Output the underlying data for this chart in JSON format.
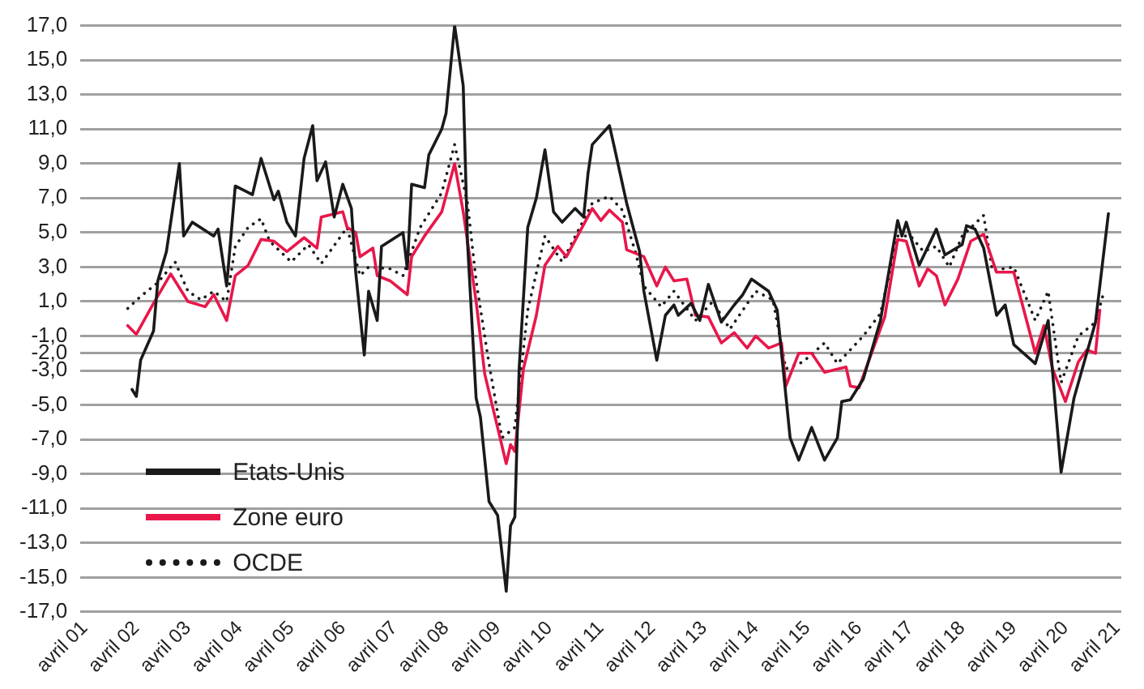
{
  "chart_data": {
    "type": "line",
    "legend": "bottom left",
    "grid": "y",
    "marker": "none",
    "xlim": [
      "2001-03",
      "2021-05"
    ],
    "xticks": [
      {
        "value": "2001-04",
        "label": "avril 01"
      },
      {
        "value": "2002-04",
        "label": "avril 02"
      },
      {
        "value": "2003-04",
        "label": "avril 03"
      },
      {
        "value": "2004-04",
        "label": "avril 04"
      },
      {
        "value": "2005-04",
        "label": "avril 05"
      },
      {
        "value": "2006-04",
        "label": "avril 06"
      },
      {
        "value": "2007-04",
        "label": "avril 07"
      },
      {
        "value": "2008-04",
        "label": "avril 08"
      },
      {
        "value": "2009-04",
        "label": "avril 09"
      },
      {
        "value": "2010-04",
        "label": "avril 10"
      },
      {
        "value": "2011-04",
        "label": "avril 11"
      },
      {
        "value": "2012-04",
        "label": "avril 12"
      },
      {
        "value": "2013-04",
        "label": "avril 13"
      },
      {
        "value": "2014-04",
        "label": "avril 14"
      },
      {
        "value": "2015-04",
        "label": "avril 15"
      },
      {
        "value": "2016-04",
        "label": "avril 16"
      },
      {
        "value": "2017-04",
        "label": "avril 17"
      },
      {
        "value": "2018-04",
        "label": "avril 18"
      },
      {
        "value": "2019-04",
        "label": "avril 19"
      },
      {
        "value": "2020-04",
        "label": "avril 20"
      },
      {
        "value": "2021-04",
        "label": "avril 21"
      }
    ],
    "ylim": [
      -17,
      17
    ],
    "yticks": [
      {
        "value": 17,
        "label": "17,0"
      },
      {
        "value": 15,
        "label": "15,0"
      },
      {
        "value": 13,
        "label": "13,0"
      },
      {
        "value": 11,
        "label": "11,0"
      },
      {
        "value": 9,
        "label": "9,0"
      },
      {
        "value": 7,
        "label": "7,0"
      },
      {
        "value": 5,
        "label": "5,0"
      },
      {
        "value": 3,
        "label": "3,0"
      },
      {
        "value": 1,
        "label": "1,0"
      },
      {
        "value": -1,
        "label": "-1,0"
      },
      {
        "value": -2,
        "label": "-2,0"
      },
      {
        "value": -3,
        "label": "-3,0"
      },
      {
        "value": -5,
        "label": "-5,0"
      },
      {
        "value": -7,
        "label": "-7,0"
      },
      {
        "value": -9,
        "label": "-9,0"
      },
      {
        "value": -11,
        "label": "-11,0"
      },
      {
        "value": -13,
        "label": "-13,0"
      },
      {
        "value": -15,
        "label": "-15,0"
      },
      {
        "value": -17,
        "label": "-17,0"
      }
    ],
    "series": [
      {
        "name": "Etats-Unis",
        "color": "#1a1a1a",
        "line_style": "solid",
        "x": [
          "2002-03",
          "2002-04",
          "2002-05",
          "2002-08",
          "2002-09",
          "2002-11",
          "2003-02",
          "2003-03",
          "2003-05",
          "2003-10",
          "2003-11",
          "2004-01",
          "2004-03",
          "2004-07",
          "2004-09",
          "2004-12",
          "2005-01",
          "2005-03",
          "2005-05",
          "2005-07",
          "2005-09",
          "2005-10",
          "2005-12",
          "2006-02",
          "2006-04",
          "2006-06",
          "2006-07",
          "2006-09",
          "2006-10",
          "2006-12",
          "2007-01",
          "2007-06",
          "2007-07",
          "2007-08",
          "2007-11",
          "2007-12",
          "2008-03",
          "2008-04",
          "2008-06",
          "2008-08",
          "2008-09",
          "2008-11",
          "2008-12",
          "2009-02",
          "2009-04",
          "2009-06",
          "2009-07",
          "2009-08",
          "2009-09",
          "2009-11",
          "2010-01",
          "2010-03",
          "2010-05",
          "2010-07",
          "2010-10",
          "2010-12",
          "2011-01",
          "2011-02",
          "2011-06",
          "2011-07",
          "2011-10",
          "2012-01",
          "2012-02",
          "2012-05",
          "2012-07",
          "2012-09",
          "2012-10",
          "2013-01",
          "2013-03",
          "2013-05",
          "2013-08",
          "2013-11",
          "2014-01",
          "2014-03",
          "2014-07",
          "2014-09",
          "2014-12",
          "2015-02",
          "2015-05",
          "2015-08",
          "2015-11",
          "2015-12",
          "2016-02",
          "2016-05",
          "2016-09",
          "2017-01",
          "2017-02",
          "2017-03",
          "2017-06",
          "2017-10",
          "2017-12",
          "2018-04",
          "2018-05",
          "2018-07",
          "2018-09",
          "2018-12",
          "2019-02",
          "2019-04",
          "2019-09",
          "2019-12",
          "2020-03",
          "2020-06",
          "2020-11",
          "2021-02"
        ],
        "values": [
          -4.1,
          -4.5,
          -2.4,
          -0.7,
          2.2,
          3.9,
          9.0,
          4.8,
          5.6,
          4.8,
          5.2,
          1.9,
          7.7,
          7.2,
          9.3,
          6.9,
          7.4,
          5.6,
          4.8,
          9.3,
          11.2,
          8.0,
          9.1,
          5.9,
          7.8,
          6.4,
          2.7,
          -2.1,
          1.6,
          -0.1,
          4.2,
          5.0,
          2.9,
          7.8,
          7.6,
          9.5,
          11.0,
          11.9,
          17.0,
          13.5,
          4.4,
          -4.6,
          -5.7,
          -10.6,
          -11.4,
          -15.8,
          -12.0,
          -11.5,
          -2.9,
          5.3,
          7.0,
          9.8,
          6.2,
          5.6,
          6.4,
          5.9,
          8.4,
          10.1,
          11.2,
          10.1,
          6.7,
          3.9,
          1.6,
          -2.4,
          0.2,
          0.8,
          0.2,
          0.9,
          -0.1,
          2.0,
          -0.2,
          0.8,
          1.4,
          2.3,
          1.6,
          0.5,
          -6.9,
          -8.2,
          -6.3,
          -8.2,
          -6.9,
          -4.8,
          -4.7,
          -3.5,
          -0.1,
          5.7,
          4.8,
          5.6,
          3.1,
          5.2,
          3.7,
          4.3,
          5.4,
          5.2,
          4.1,
          0.2,
          0.8,
          -1.5,
          -2.6,
          -0.1,
          -8.9,
          -4.6,
          -0.2,
          6.1
        ]
      },
      {
        "name": "Zone euro",
        "color": "#e8174a",
        "line_style": "solid",
        "x": [
          "2002-02",
          "2002-04",
          "2002-08",
          "2002-12",
          "2003-04",
          "2003-08",
          "2003-10",
          "2004-01",
          "2004-03",
          "2004-06",
          "2004-09",
          "2004-12",
          "2005-03",
          "2005-07",
          "2005-10",
          "2005-11",
          "2006-04",
          "2006-05",
          "2006-07",
          "2006-08",
          "2006-11",
          "2006-12",
          "2007-03",
          "2007-07",
          "2007-08",
          "2007-11",
          "2008-03",
          "2008-06",
          "2008-08",
          "2008-11",
          "2009-01",
          "2009-06",
          "2009-07",
          "2009-08",
          "2009-10",
          "2010-01",
          "2010-03",
          "2010-06",
          "2010-08",
          "2011-02",
          "2011-04",
          "2011-06",
          "2011-09",
          "2011-10",
          "2012-02",
          "2012-05",
          "2012-07",
          "2012-09",
          "2012-12",
          "2013-02",
          "2013-05",
          "2013-08",
          "2013-11",
          "2014-02",
          "2014-04",
          "2014-07",
          "2014-10",
          "2014-11",
          "2015-02",
          "2015-05",
          "2015-08",
          "2016-01",
          "2016-02",
          "2016-04",
          "2016-10",
          "2017-01",
          "2017-03",
          "2017-06",
          "2017-08",
          "2017-10",
          "2017-12",
          "2018-03",
          "2018-06",
          "2018-09",
          "2018-12",
          "2019-04",
          "2019-09",
          "2019-11",
          "2020-01",
          "2020-04",
          "2020-07",
          "2020-09",
          "2020-11",
          "2020-12"
        ],
        "values": [
          -0.4,
          -0.9,
          0.9,
          2.6,
          1.0,
          0.7,
          1.4,
          -0.1,
          2.5,
          3.1,
          4.6,
          4.5,
          3.9,
          4.7,
          4.1,
          5.9,
          6.2,
          5.3,
          5.0,
          3.6,
          4.1,
          2.5,
          2.2,
          1.4,
          3.6,
          4.8,
          6.2,
          9.0,
          6.2,
          1.0,
          -3.2,
          -8.4,
          -7.3,
          -7.7,
          -2.9,
          0.2,
          3.1,
          4.2,
          3.6,
          6.4,
          5.7,
          6.3,
          5.6,
          4.0,
          3.6,
          1.9,
          3.0,
          2.2,
          2.3,
          0.2,
          0.1,
          -1.4,
          -0.8,
          -1.7,
          -1.0,
          -1.7,
          -1.4,
          -3.9,
          -2.0,
          -2.0,
          -3.1,
          -2.8,
          -3.9,
          -4.0,
          0.1,
          4.6,
          4.5,
          1.9,
          2.9,
          2.5,
          0.8,
          2.3,
          4.5,
          4.9,
          2.7,
          2.7,
          -2.0,
          -0.4,
          -2.9,
          -4.8,
          -2.5,
          -1.8,
          -2.0,
          0.5
        ]
      },
      {
        "name": "OCDE",
        "color": "#1a1a1a",
        "line_style": "dotted",
        "x": [
          "2002-02",
          "2002-05",
          "2002-09",
          "2003-01",
          "2003-04",
          "2003-07",
          "2003-10",
          "2004-01",
          "2004-03",
          "2004-06",
          "2004-09",
          "2004-11",
          "2005-04",
          "2005-08",
          "2005-11",
          "2006-01",
          "2006-05",
          "2006-08",
          "2006-10",
          "2007-03",
          "2007-06",
          "2007-10",
          "2008-03",
          "2008-06",
          "2008-09",
          "2008-11",
          "2009-02",
          "2009-05",
          "2009-08",
          "2009-11",
          "2010-03",
          "2010-07",
          "2011-02",
          "2011-06",
          "2011-09",
          "2011-12",
          "2012-02",
          "2012-06",
          "2012-09",
          "2013-02",
          "2013-06",
          "2013-10",
          "2014-04",
          "2014-08",
          "2014-11",
          "2015-03",
          "2015-08",
          "2015-11",
          "2016-02",
          "2016-05",
          "2016-09",
          "2017-01",
          "2017-04",
          "2017-07",
          "2017-10",
          "2018-01",
          "2018-04",
          "2018-09",
          "2018-11",
          "2019-04",
          "2019-09",
          "2019-12",
          "2020-03",
          "2020-07",
          "2020-11",
          "2021-01"
        ],
        "values": [
          0.6,
          1.3,
          2.1,
          3.3,
          1.6,
          1.1,
          1.6,
          1.0,
          4.2,
          5.3,
          5.8,
          4.5,
          3.3,
          4.3,
          3.2,
          3.9,
          5.3,
          2.5,
          3.0,
          2.9,
          2.5,
          5.3,
          7.3,
          10.1,
          6.7,
          2.2,
          -2.6,
          -6.9,
          -6.3,
          0.5,
          4.8,
          3.3,
          6.7,
          7.1,
          6.3,
          3.9,
          1.9,
          0.7,
          1.6,
          -0.1,
          1.0,
          -0.6,
          1.6,
          1.1,
          -2.9,
          -2.5,
          -1.4,
          -2.6,
          -1.8,
          -1.0,
          0.3,
          4.8,
          4.8,
          3.9,
          4.2,
          3.0,
          4.8,
          6.0,
          2.8,
          3.0,
          -0.1,
          1.6,
          -3.7,
          -1.0,
          -0.2,
          1.6
        ]
      }
    ]
  }
}
